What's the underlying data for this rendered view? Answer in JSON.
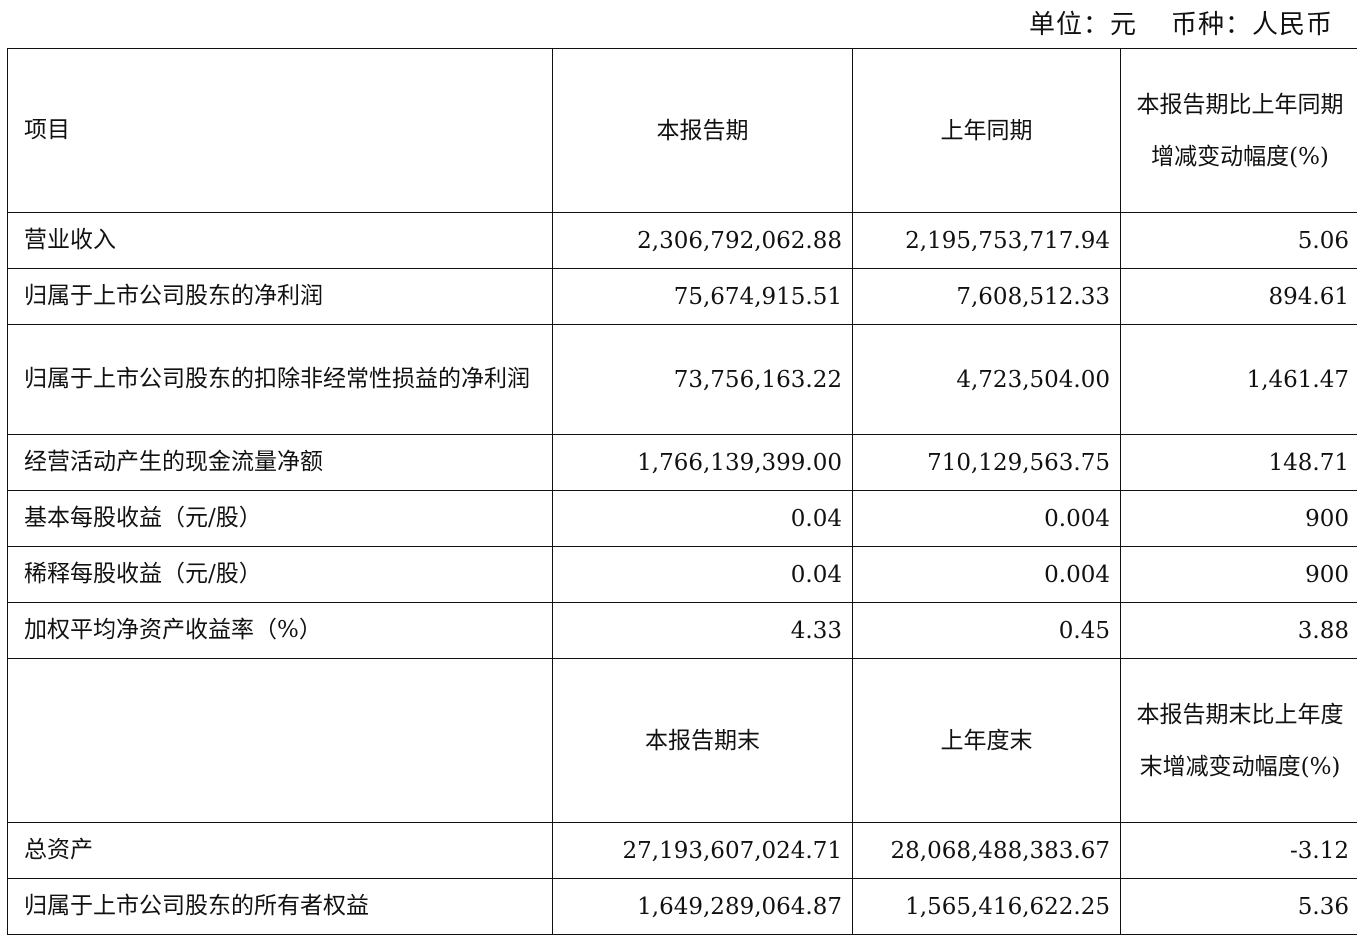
{
  "unit_line": {
    "unit": "单位：元",
    "currency": "币种：人民币"
  },
  "header1": [
    "项目",
    "本报告期",
    "上年同期",
    "本报告期比上年同期增减变动幅度(%)"
  ],
  "rows1": [
    [
      "营业收入",
      "2,306,792,062.88",
      "2,195,753,717.94",
      "5.06"
    ],
    [
      "归属于上市公司股东的净利润",
      "75,674,915.51",
      "7,608,512.33",
      "894.61"
    ],
    [
      "归属于上市公司股东的扣除非经常性损益的净利润",
      "73,756,163.22",
      "4,723,504.00",
      "1,461.47"
    ],
    [
      "经营活动产生的现金流量净额",
      "1,766,139,399.00",
      "710,129,563.75",
      "148.71"
    ],
    [
      "基本每股收益（元/股）",
      "0.04",
      "0.004",
      "900"
    ],
    [
      "稀释每股收益（元/股）",
      "0.04",
      "0.004",
      "900"
    ],
    [
      "加权平均净资产收益率（%）",
      "4.33",
      "0.45",
      "3.88"
    ]
  ],
  "header2": [
    "",
    "本报告期末",
    "上年度末",
    "本报告期末比上年度末增减变动幅度(%)"
  ],
  "rows2": [
    [
      "总资产",
      "27,193,607,024.71",
      "28,068,488,383.67",
      "-3.12"
    ],
    [
      "归属于上市公司股东的所有者权益",
      "1,649,289,064.87",
      "1,565,416,622.25",
      "5.36"
    ]
  ]
}
